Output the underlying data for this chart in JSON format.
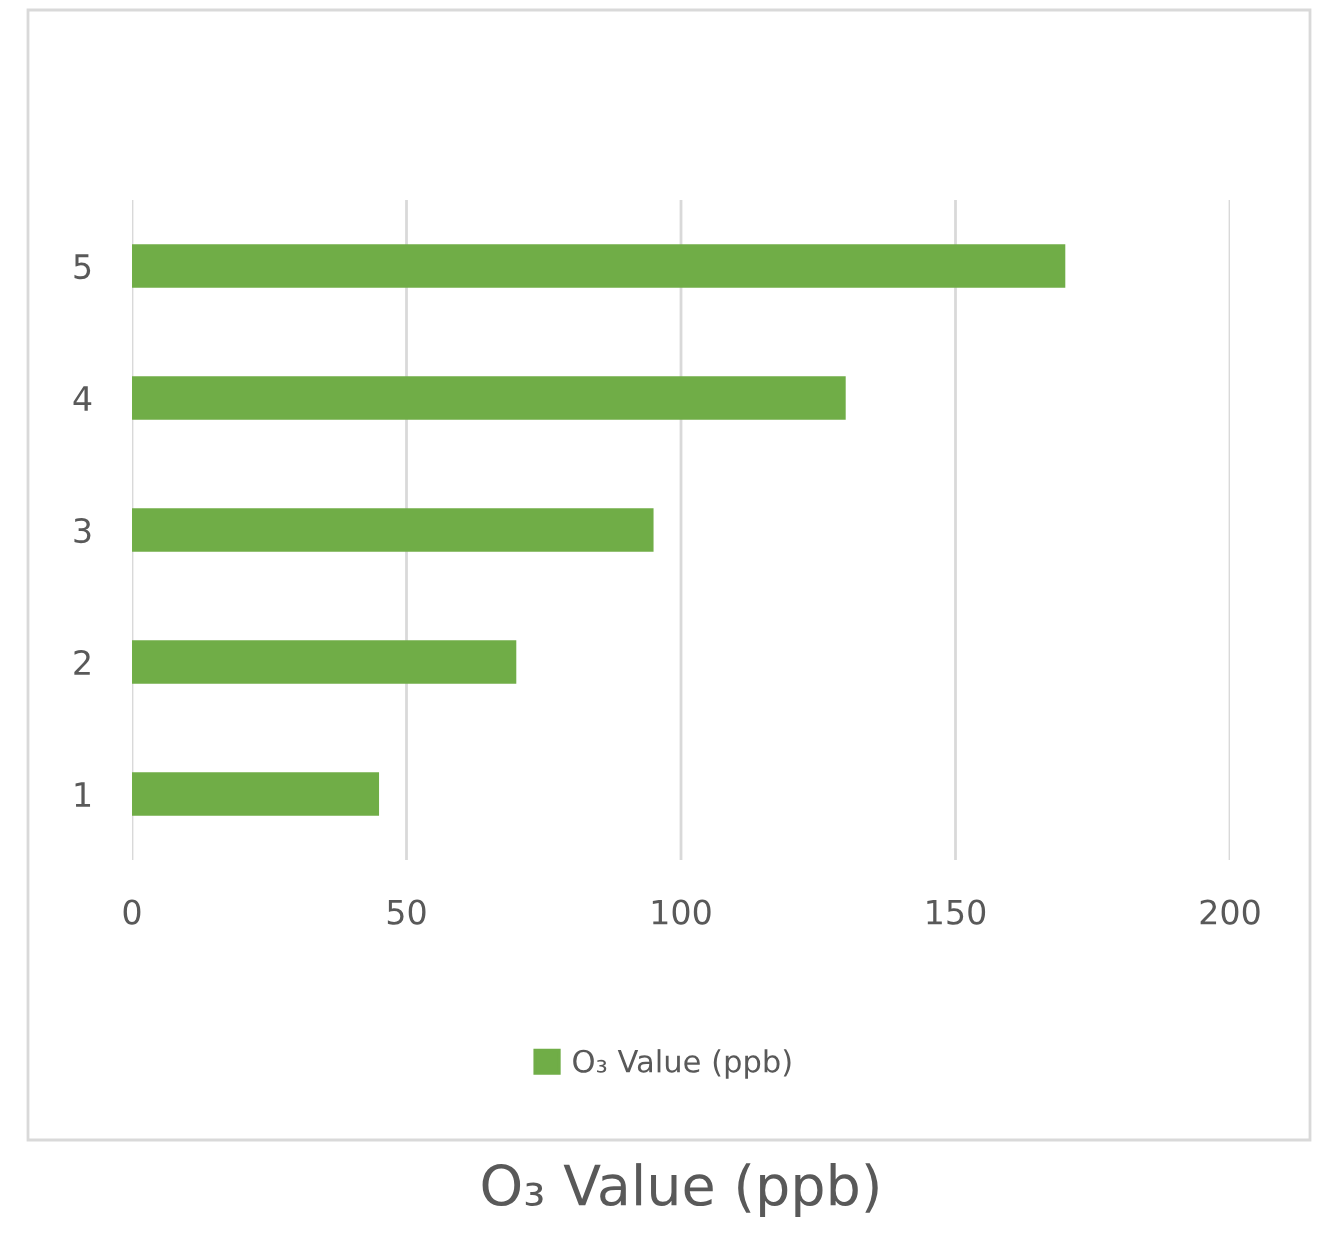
{
  "chart_data": {
    "type": "bar",
    "orientation": "horizontal",
    "xlabel": "O₃ Value (ppb)",
    "categories": [
      "5",
      "4",
      "3",
      "2",
      "1"
    ],
    "series": [
      {
        "name": "O₃ Value (ppb)",
        "color": "#70ad47",
        "values": [
          170,
          130,
          95,
          70,
          45
        ]
      }
    ],
    "xlim": [
      0,
      200
    ],
    "xticks": [
      0,
      50,
      100,
      150,
      200
    ],
    "grid": "x",
    "legend": "bottom"
  }
}
